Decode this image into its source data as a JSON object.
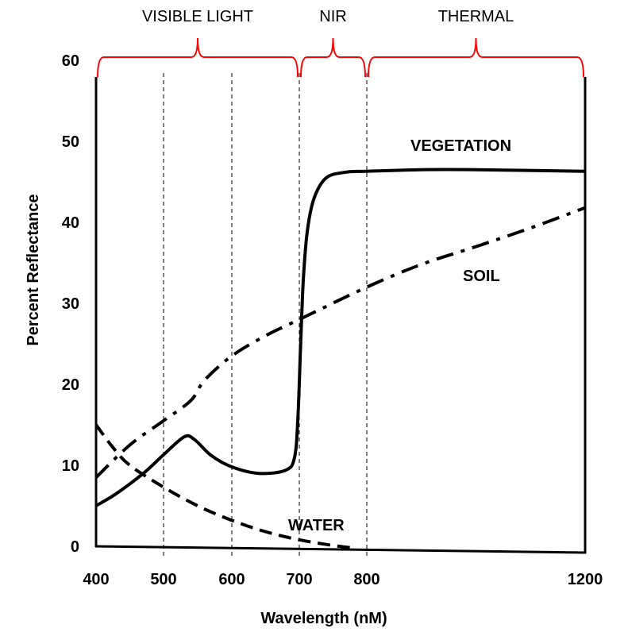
{
  "chart_data": {
    "type": "line",
    "title": "",
    "xlabel": "Wavelength (nM)",
    "ylabel": "Percent Reflectance",
    "x_ticks": [
      400,
      500,
      600,
      700,
      800,
      1200
    ],
    "x_tick_labels": [
      "400",
      "500",
      "600",
      "700",
      "800",
      "1200"
    ],
    "y_ticks": [
      0,
      10,
      20,
      30,
      40,
      50,
      60
    ],
    "y_tick_labels": [
      "0",
      "10",
      "20",
      "30",
      "40",
      "50",
      "60"
    ],
    "xlim": [
      400,
      1200
    ],
    "ylim": [
      0,
      60
    ],
    "x_scale": "non-uniform (800 to 1200 compressed)",
    "grid": "dashed vertical lines at 500, 600, 700, 800",
    "bands": [
      {
        "label": "VISIBLE LIGHT",
        "from": 400,
        "to": 700
      },
      {
        "label": "NIR",
        "from": 700,
        "to": 800
      },
      {
        "label": "THERMAL",
        "from": 800,
        "to": 1200
      }
    ],
    "band_color": "#ff0000",
    "series": [
      {
        "name": "VEGETATION",
        "style": "solid",
        "x": [
          400,
          430,
          470,
          500,
          530,
          545,
          570,
          600,
          640,
          680,
          693,
          698,
          702,
          706,
          712,
          722,
          740,
          770,
          800,
          900,
          1000,
          1200
        ],
        "y": [
          5,
          6.5,
          9,
          11.3,
          13.5,
          13.2,
          11.2,
          9.8,
          9,
          9.4,
          11,
          16,
          25,
          33,
          39,
          43,
          45.5,
          46.2,
          46.3,
          46.5,
          46.5,
          46.3
        ]
      },
      {
        "name": "SOIL",
        "style": "dash-dot",
        "x": [
          400,
          450,
          500,
          540,
          560,
          600,
          650,
          700,
          800,
          900,
          1000,
          1100,
          1200
        ],
        "y": [
          8.5,
          12.5,
          15.5,
          18,
          20.5,
          23.5,
          26,
          28,
          32,
          34.8,
          37,
          39.3,
          41.8
        ]
      },
      {
        "name": "WATER",
        "style": "dashed",
        "x": [
          400,
          425,
          450,
          500,
          550,
          600,
          650,
          700,
          750,
          780
        ],
        "y": [
          15,
          12.2,
          10,
          7.3,
          5,
          3.2,
          1.8,
          0.8,
          0.1,
          -0.2
        ]
      }
    ],
    "annotations": [
      "VEGETATION",
      "SOIL",
      "WATER"
    ]
  }
}
